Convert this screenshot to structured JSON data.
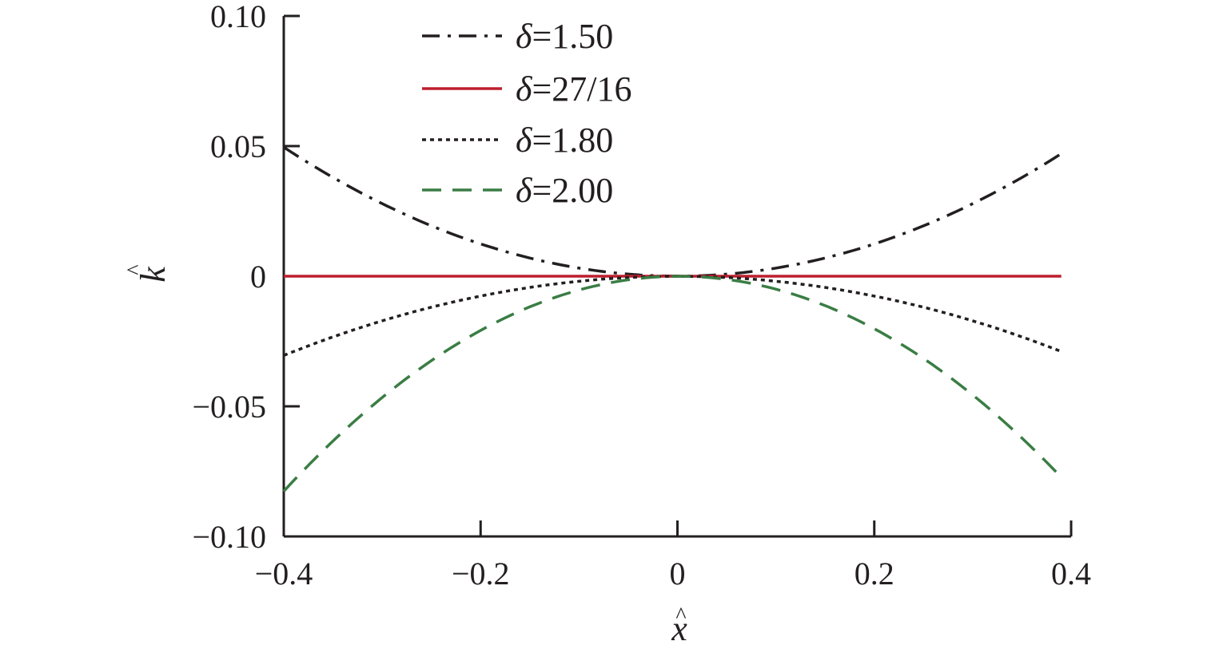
{
  "chart_data": {
    "type": "line",
    "title": "",
    "xlabel": "x",
    "ylabel": "k",
    "xlabel_accent": "^",
    "ylabel_accent": "^",
    "xlim": [
      -0.4,
      0.4
    ],
    "ylim": [
      -0.1,
      0.1
    ],
    "x_ticks": [
      -0.4,
      -0.2,
      0,
      0.2,
      0.4
    ],
    "x_tick_labels": [
      "−0.4",
      "−0.2",
      "0",
      "0.2",
      "0.4"
    ],
    "y_ticks": [
      0.1,
      0.05,
      0,
      -0.05,
      -0.1
    ],
    "y_tick_labels": [
      "0.10",
      "0.05",
      "0",
      "−0.05",
      "−0.10"
    ],
    "grid": false,
    "legend_position": "top-center",
    "x": [
      -0.4,
      -0.3,
      -0.2,
      -0.1,
      0,
      0.1,
      0.2,
      0.3,
      0.39
    ],
    "series": [
      {
        "name_symbol": "δ",
        "name_value": "=1.50",
        "color": "#231f20",
        "dash": "dashdot",
        "values": [
          0.0495,
          0.028,
          0.0125,
          0.003,
          0.0,
          0.003,
          0.0125,
          0.028,
          0.047
        ]
      },
      {
        "name_symbol": "δ",
        "name_value": "=27/16",
        "color": "#be1e2d",
        "dash": "solid",
        "values": [
          0,
          0,
          0,
          0,
          0,
          0,
          0,
          0,
          0
        ]
      },
      {
        "name_symbol": "δ",
        "name_value": "=1.80",
        "color": "#231f20",
        "dash": "dotted",
        "values": [
          -0.0305,
          -0.017,
          -0.0078,
          -0.0019,
          0.0,
          -0.0019,
          -0.0078,
          -0.017,
          -0.029
        ]
      },
      {
        "name_symbol": "δ",
        "name_value": "=2.00",
        "color": "#3a7d44",
        "dash": "dashed",
        "values": [
          -0.083,
          -0.0465,
          -0.0205,
          -0.005,
          0.0,
          -0.005,
          -0.0205,
          -0.0465,
          -0.0765
        ]
      }
    ]
  }
}
